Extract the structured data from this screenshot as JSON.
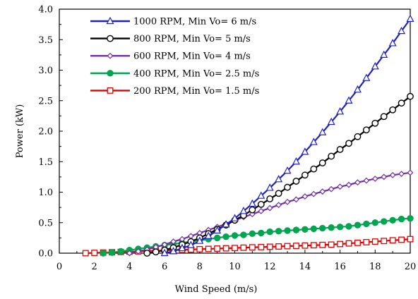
{
  "chart_data": {
    "type": "line",
    "title": "",
    "xlabel": "Wind Speed (m/s)",
    "ylabel": "Power  (kW)",
    "xlim": [
      0,
      20
    ],
    "ylim": [
      0,
      4.0
    ],
    "xticks": [
      0,
      2,
      4,
      6,
      8,
      10,
      12,
      14,
      16,
      18,
      20
    ],
    "yticks": [
      0.0,
      0.5,
      1.0,
      1.5,
      2.0,
      2.5,
      3.0,
      3.5,
      4.0
    ],
    "grid": false,
    "legend_position": "top-left",
    "step": 0.5,
    "series": [
      {
        "name": "1000 RPM, Min Vo= 6 m/s",
        "color": "#2020c0",
        "marker": "triangle",
        "x_start": 6.0,
        "values": [
          0.0,
          0.03,
          0.08,
          0.13,
          0.2,
          0.28,
          0.37,
          0.47,
          0.57,
          0.69,
          0.81,
          0.94,
          1.07,
          1.21,
          1.35,
          1.5,
          1.66,
          1.82,
          1.98,
          2.15,
          2.32,
          2.5,
          2.68,
          2.87,
          3.06,
          3.25,
          3.44,
          3.64,
          3.84
        ]
      },
      {
        "name": "800  RPM, Min Vo= 5 m/s",
        "color": "#000000",
        "marker": "circle",
        "x_start": 5.0,
        "values": [
          0.0,
          0.02,
          0.05,
          0.09,
          0.14,
          0.19,
          0.25,
          0.32,
          0.39,
          0.46,
          0.54,
          0.62,
          0.71,
          0.8,
          0.89,
          0.98,
          1.08,
          1.18,
          1.28,
          1.38,
          1.48,
          1.59,
          1.7,
          1.8,
          1.91,
          2.02,
          2.13,
          2.24,
          2.35,
          2.46,
          2.57
        ]
      },
      {
        "name": "600  RPM, Min Vo= 4 m/s",
        "color": "#7030a0",
        "marker": "diamond",
        "x_start": 4.0,
        "values": [
          0.0,
          0.03,
          0.06,
          0.1,
          0.14,
          0.19,
          0.23,
          0.28,
          0.33,
          0.38,
          0.43,
          0.48,
          0.54,
          0.59,
          0.64,
          0.69,
          0.74,
          0.79,
          0.84,
          0.88,
          0.93,
          0.97,
          1.01,
          1.05,
          1.09,
          1.12,
          1.16,
          1.19,
          1.22,
          1.25,
          1.28,
          1.3,
          1.32
        ]
      },
      {
        "name": "400  RPM, Min Vo= 2.5 m/s",
        "color": "#00a550",
        "marker": "filled-circle",
        "x_start": 2.5,
        "values": [
          0.0,
          0.01,
          0.03,
          0.05,
          0.07,
          0.09,
          0.11,
          0.13,
          0.15,
          0.17,
          0.19,
          0.21,
          0.23,
          0.25,
          0.27,
          0.29,
          0.3,
          0.32,
          0.33,
          0.35,
          0.36,
          0.37,
          0.38,
          0.39,
          0.4,
          0.41,
          0.42,
          0.43,
          0.44,
          0.46,
          0.48,
          0.5,
          0.52,
          0.54,
          0.56,
          0.57
        ]
      },
      {
        "name": "200  RPM, Min Vo= 1.5 m/s",
        "color": "#e00000",
        "marker": "square",
        "x_start": 1.5,
        "values": [
          0.0,
          0.005,
          0.01,
          0.015,
          0.02,
          0.025,
          0.03,
          0.035,
          0.04,
          0.045,
          0.05,
          0.055,
          0.06,
          0.065,
          0.07,
          0.075,
          0.08,
          0.085,
          0.09,
          0.095,
          0.1,
          0.105,
          0.11,
          0.115,
          0.12,
          0.125,
          0.13,
          0.135,
          0.14,
          0.15,
          0.16,
          0.17,
          0.18,
          0.19,
          0.2,
          0.21,
          0.22,
          0.23
        ]
      }
    ]
  }
}
